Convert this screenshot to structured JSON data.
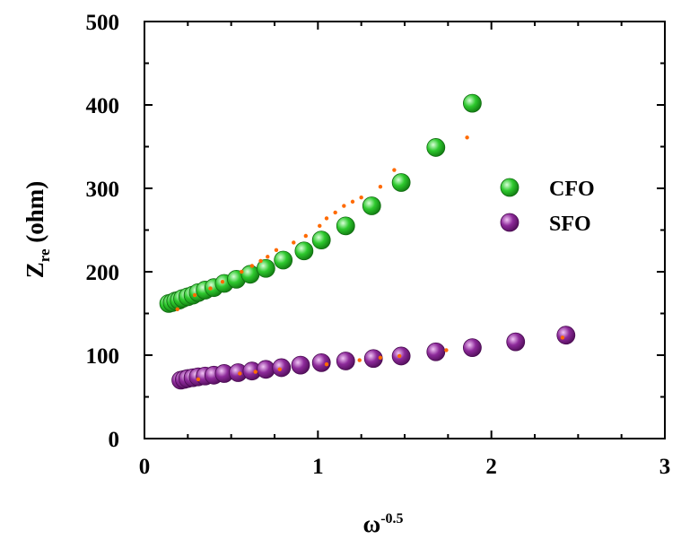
{
  "chart_data": {
    "type": "scatter",
    "xlabel": {
      "base": "ω",
      "sup": "-0.5"
    },
    "ylabel": {
      "base": "Z",
      "sub": "re",
      "rest": " (ohm)"
    },
    "xlim": [
      0,
      3
    ],
    "ylim": [
      0,
      500
    ],
    "xticks": [
      0,
      1,
      2,
      3
    ],
    "yticks": [
      0,
      100,
      200,
      300,
      400,
      500
    ],
    "grid": false,
    "legend_position": "right",
    "colors": {
      "cfo": "#1fb81f",
      "sfo": "#7a1a86",
      "fit": "#ff6a00"
    },
    "series": [
      {
        "name": "CFO",
        "x": [
          0.14,
          0.16,
          0.18,
          0.2,
          0.22,
          0.25,
          0.28,
          0.31,
          0.35,
          0.4,
          0.46,
          0.53,
          0.61,
          0.7,
          0.8,
          0.92,
          1.02,
          1.16,
          1.31,
          1.48,
          1.68,
          1.89
        ],
        "y": [
          162,
          163,
          165,
          166,
          168,
          170,
          172,
          175,
          178,
          181,
          186,
          191,
          197,
          204,
          214,
          225,
          238,
          255,
          279,
          307,
          349,
          402
        ]
      },
      {
        "name": "SFO",
        "x": [
          0.21,
          0.23,
          0.25,
          0.28,
          0.31,
          0.35,
          0.4,
          0.46,
          0.54,
          0.62,
          0.7,
          0.79,
          0.9,
          1.02,
          1.16,
          1.32,
          1.48,
          1.68,
          1.89,
          2.14,
          2.43
        ],
        "y": [
          70,
          71,
          72,
          73,
          74,
          75,
          76,
          78,
          79,
          81,
          83,
          85,
          88,
          91,
          93,
          96,
          99,
          104,
          109,
          116,
          124
        ]
      },
      {
        "name": "",
        "kind": "fit",
        "x": [
          0.19,
          0.29,
          0.38,
          0.45,
          0.56,
          0.62,
          0.67,
          0.71,
          0.76,
          0.86,
          0.93,
          1.01,
          1.05,
          1.1,
          1.15,
          1.2,
          1.25,
          1.36,
          1.44,
          1.86
        ],
        "y": [
          155,
          172,
          180,
          188,
          200,
          207,
          213,
          218,
          226,
          235,
          243,
          255,
          264,
          271,
          279,
          284,
          289,
          302,
          322,
          361
        ]
      },
      {
        "name": "",
        "kind": "fit",
        "x": [
          0.31,
          0.55,
          0.64,
          0.78,
          1.05,
          1.24,
          1.36,
          1.47,
          1.74,
          2.41
        ],
        "y": [
          71,
          78,
          80,
          83,
          89,
          94,
          97,
          99,
          106,
          121
        ]
      }
    ]
  }
}
